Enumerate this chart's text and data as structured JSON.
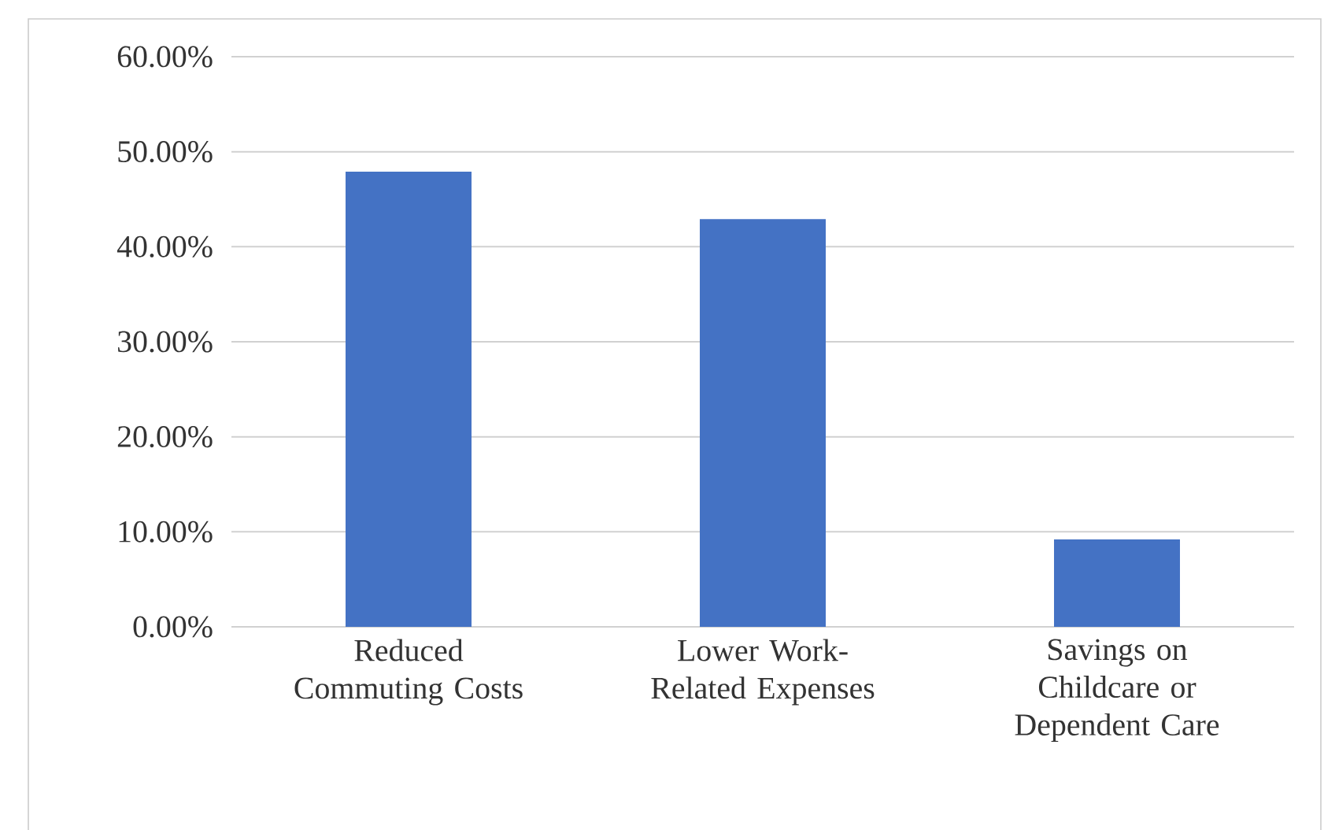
{
  "chart_data": {
    "type": "bar",
    "categories": [
      "Reduced Commuting Costs",
      "Lower Work-Related Expenses",
      "Savings on Childcare or Dependent Care"
    ],
    "values": [
      47.9,
      42.9,
      9.2
    ],
    "color": "#4472c4",
    "ylim": [
      0,
      60
    ],
    "yticks": [
      {
        "value": 0,
        "label": "0.00%"
      },
      {
        "value": 10,
        "label": "10.00%"
      },
      {
        "value": 20,
        "label": "20.00%"
      },
      {
        "value": 30,
        "label": "30.00%"
      },
      {
        "value": 40,
        "label": "40.00%"
      },
      {
        "value": 50,
        "label": "50.00%"
      },
      {
        "value": 60,
        "label": "60.00%"
      }
    ],
    "grid": "y"
  }
}
